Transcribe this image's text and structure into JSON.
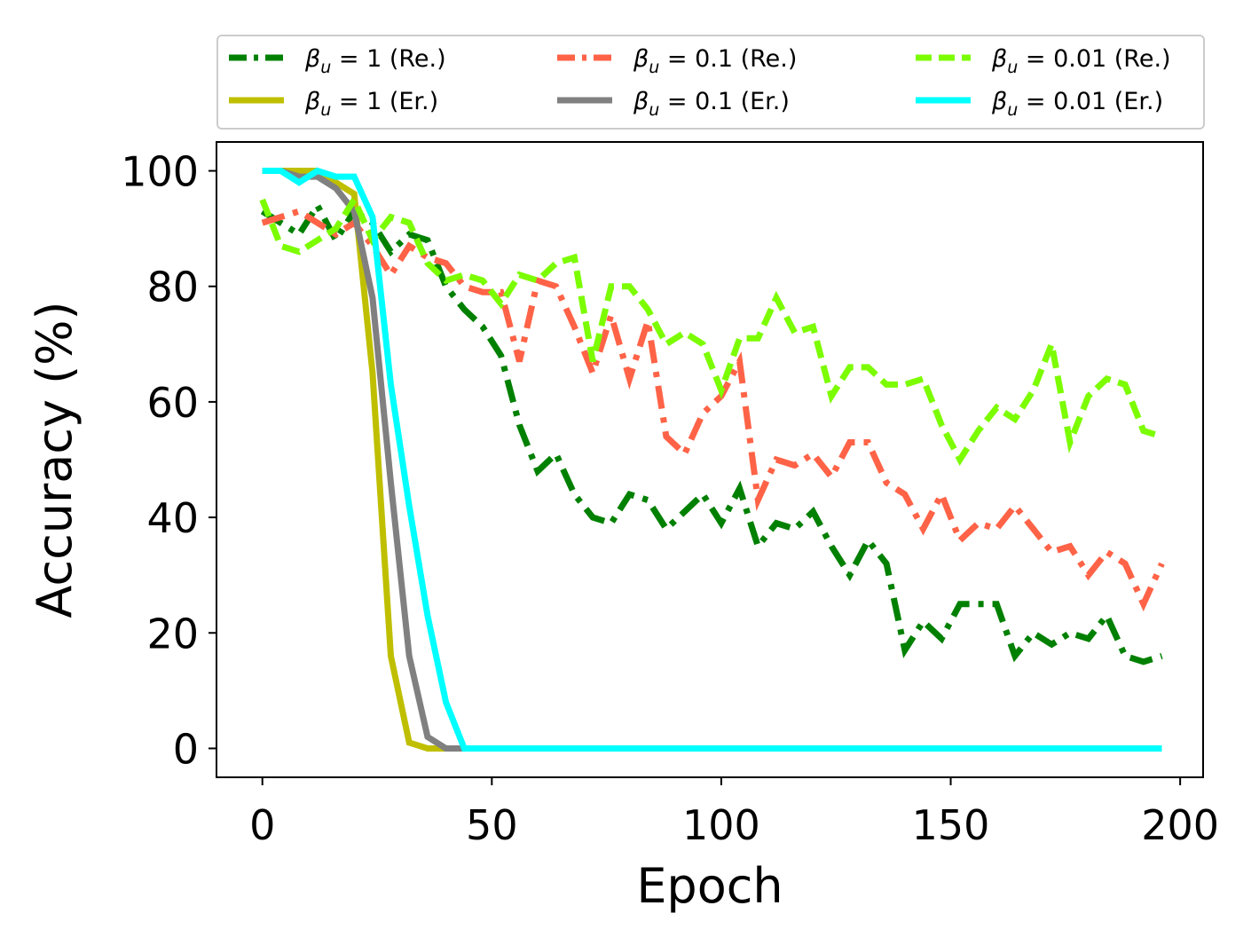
{
  "chart_data": {
    "type": "line",
    "title": "",
    "xlabel": "Epoch",
    "ylabel": "Accuracy (%)",
    "xlim": [
      -10,
      205
    ],
    "ylim": [
      -5,
      105
    ],
    "xticks": [
      "0",
      "50",
      "100",
      "150",
      "200"
    ],
    "yticks": [
      "0",
      "20",
      "40",
      "60",
      "80",
      "100"
    ],
    "xtick_values": [
      0,
      50,
      100,
      150,
      200
    ],
    "ytick_values": [
      0,
      20,
      40,
      60,
      80,
      100
    ],
    "grid": false,
    "legend_position": "top",
    "series": [
      {
        "name": "β_u = 1 (Re.)",
        "legend_prefix": "β",
        "legend_sub": "u",
        "legend_suffix": " = 1 (Re.)",
        "color": "#008000",
        "style": "dashdot",
        "x": [
          0,
          4,
          8,
          12,
          16,
          20,
          24,
          28,
          32,
          36,
          40,
          44,
          48,
          52,
          56,
          60,
          64,
          68,
          72,
          76,
          80,
          84,
          88,
          92,
          96,
          100,
          104,
          108,
          112,
          116,
          120,
          124,
          128,
          132,
          136,
          140,
          144,
          148,
          152,
          156,
          160,
          164,
          168,
          172,
          176,
          180,
          184,
          188,
          192,
          196
        ],
        "y": [
          93,
          91,
          89,
          94,
          88,
          93,
          91,
          86,
          89,
          88,
          80,
          76,
          73,
          68,
          56,
          48,
          51,
          44,
          40,
          39,
          44,
          43,
          38,
          41,
          44,
          39,
          45,
          35,
          39,
          38,
          41,
          35,
          30,
          36,
          32,
          17,
          22,
          19,
          25,
          25,
          25,
          16,
          20,
          18,
          20,
          19,
          23,
          16,
          15,
          16
        ]
      },
      {
        "name": "β_u = 1 (Er.)",
        "legend_prefix": "β",
        "legend_sub": "u",
        "legend_suffix": " = 1 (Er.)",
        "color": "#bfbf00",
        "style": "solid",
        "x": [
          0,
          4,
          8,
          12,
          16,
          20,
          24,
          28,
          32,
          36,
          40,
          44,
          48,
          52,
          56,
          60,
          64,
          68,
          72,
          76,
          80,
          84,
          88,
          92,
          96,
          100,
          104,
          108,
          112,
          116,
          120,
          124,
          128,
          132,
          136,
          140,
          144,
          148,
          152,
          156,
          160,
          164,
          168,
          172,
          176,
          180,
          184,
          188,
          192,
          196
        ],
        "y": [
          100,
          100,
          100,
          100,
          98,
          96,
          65,
          16,
          1,
          0,
          0,
          0,
          0,
          0,
          0,
          0,
          0,
          0,
          0,
          0,
          0,
          0,
          0,
          0,
          0,
          0,
          0,
          0,
          0,
          0,
          0,
          0,
          0,
          0,
          0,
          0,
          0,
          0,
          0,
          0,
          0,
          0,
          0,
          0,
          0,
          0,
          0,
          0,
          0,
          0
        ]
      },
      {
        "name": "β_u = 0.1 (Re.)",
        "legend_prefix": "β",
        "legend_sub": "u",
        "legend_suffix": " = 0.1 (Re.)",
        "color": "#ff6347",
        "style": "dashdot",
        "x": [
          0,
          4,
          8,
          12,
          16,
          20,
          24,
          28,
          32,
          36,
          40,
          44,
          48,
          52,
          56,
          60,
          64,
          68,
          72,
          76,
          80,
          84,
          88,
          92,
          96,
          100,
          104,
          108,
          112,
          116,
          120,
          124,
          128,
          132,
          136,
          140,
          144,
          148,
          152,
          156,
          160,
          164,
          168,
          172,
          176,
          180,
          184,
          188,
          192,
          196
        ],
        "y": [
          91,
          92,
          93,
          91,
          89,
          91,
          87,
          82,
          87,
          85,
          84,
          80,
          79,
          79,
          67,
          81,
          80,
          73,
          65,
          75,
          64,
          74,
          54,
          51,
          58,
          61,
          67,
          43,
          50,
          49,
          51,
          47,
          53,
          53,
          46,
          44,
          38,
          44,
          36,
          39,
          38,
          42,
          38,
          34,
          35,
          30,
          34,
          32,
          25,
          32
        ]
      },
      {
        "name": "β_u = 0.1 (Er.)",
        "legend_prefix": "β",
        "legend_sub": "u",
        "legend_suffix": " = 0.1 (Er.)",
        "color": "#808080",
        "style": "solid",
        "x": [
          0,
          4,
          8,
          12,
          16,
          20,
          24,
          28,
          32,
          36,
          40,
          44,
          48,
          52,
          56,
          60,
          64,
          68,
          72,
          76,
          80,
          84,
          88,
          92,
          96,
          100,
          104,
          108,
          112,
          116,
          120,
          124,
          128,
          132,
          136,
          140,
          144,
          148,
          152,
          156,
          160,
          164,
          168,
          172,
          176,
          180,
          184,
          188,
          192,
          196
        ],
        "y": [
          100,
          100,
          99,
          99,
          97,
          93,
          78,
          46,
          16,
          2,
          0,
          0,
          0,
          0,
          0,
          0,
          0,
          0,
          0,
          0,
          0,
          0,
          0,
          0,
          0,
          0,
          0,
          0,
          0,
          0,
          0,
          0,
          0,
          0,
          0,
          0,
          0,
          0,
          0,
          0,
          0,
          0,
          0,
          0,
          0,
          0,
          0,
          0,
          0,
          0
        ]
      },
      {
        "name": "β_u = 0.01 (Re.)",
        "legend_prefix": "β",
        "legend_sub": "u",
        "legend_suffix": " = 0.01 (Re.)",
        "color": "#7cfc00",
        "style": "dashed",
        "x": [
          0,
          4,
          8,
          12,
          16,
          20,
          24,
          28,
          32,
          36,
          40,
          44,
          48,
          52,
          56,
          60,
          64,
          68,
          72,
          76,
          80,
          84,
          88,
          92,
          96,
          100,
          104,
          108,
          112,
          116,
          120,
          124,
          128,
          132,
          136,
          140,
          144,
          148,
          152,
          156,
          160,
          164,
          168,
          172,
          176,
          180,
          184,
          188,
          192,
          196
        ],
        "y": [
          95,
          87,
          86,
          88,
          90,
          95,
          88,
          92,
          91,
          84,
          81,
          82,
          81,
          77,
          82,
          81,
          84,
          85,
          67,
          80,
          80,
          76,
          70,
          72,
          70,
          62,
          71,
          71,
          78,
          72,
          73,
          61,
          66,
          66,
          63,
          63,
          64,
          56,
          50,
          55,
          59,
          57,
          62,
          70,
          53,
          61,
          64,
          63,
          55,
          54
        ]
      },
      {
        "name": "β_u = 0.01 (Er.)",
        "legend_prefix": "β",
        "legend_sub": "u",
        "legend_suffix": " = 0.01 (Er.)",
        "color": "#00ffff",
        "style": "solid",
        "x": [
          0,
          4,
          8,
          12,
          16,
          20,
          24,
          28,
          32,
          36,
          40,
          44,
          48,
          52,
          56,
          60,
          64,
          68,
          72,
          76,
          80,
          84,
          88,
          92,
          96,
          100,
          104,
          108,
          112,
          116,
          120,
          124,
          128,
          132,
          136,
          140,
          144,
          148,
          152,
          156,
          160,
          164,
          168,
          172,
          176,
          180,
          184,
          188,
          192,
          196
        ],
        "y": [
          100,
          100,
          98,
          100,
          99,
          99,
          92,
          63,
          42,
          23,
          8,
          0,
          0,
          0,
          0,
          0,
          0,
          0,
          0,
          0,
          0,
          0,
          0,
          0,
          0,
          0,
          0,
          0,
          0,
          0,
          0,
          0,
          0,
          0,
          0,
          0,
          0,
          0,
          0,
          0,
          0,
          0,
          0,
          0,
          0,
          0,
          0,
          0,
          0,
          0
        ]
      }
    ]
  }
}
